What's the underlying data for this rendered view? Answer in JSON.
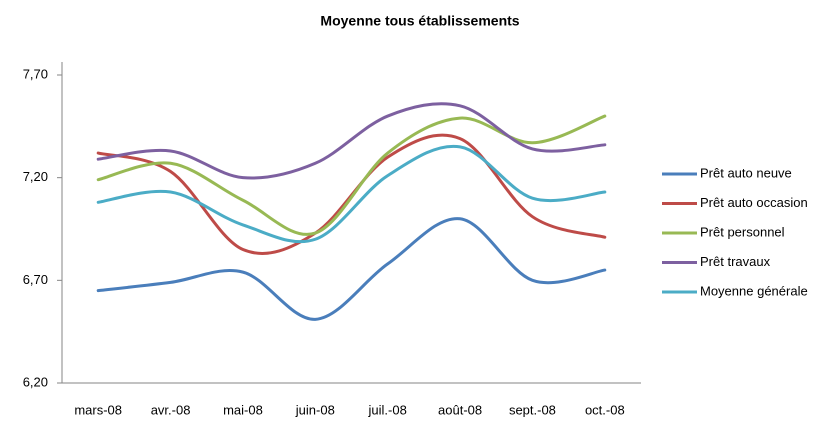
{
  "chart_data": {
    "type": "line",
    "title": "Moyenne tous établissements",
    "categories": [
      "mars-08",
      "avr.-08",
      "mai-08",
      "juin-08",
      "juil.-08",
      "août-08",
      "sept.-08",
      "oct.-08"
    ],
    "series": [
      {
        "name": "Prêt auto neuve",
        "color": "#4a7ebb",
        "values": [
          6.65,
          6.69,
          6.74,
          6.51,
          6.78,
          7.0,
          6.7,
          6.75
        ]
      },
      {
        "name": "Prêt auto occasion",
        "color": "#be4b48",
        "values": [
          7.32,
          7.23,
          6.85,
          6.93,
          7.3,
          7.39,
          7.01,
          6.91
        ]
      },
      {
        "name": "Prêt personnel",
        "color": "#98b954",
        "values": [
          7.19,
          7.27,
          7.09,
          6.93,
          7.32,
          7.49,
          7.37,
          7.5
        ]
      },
      {
        "name": "Prêt travaux",
        "color": "#7d60a0",
        "values": [
          7.29,
          7.33,
          7.2,
          7.27,
          7.5,
          7.55,
          7.34,
          7.36
        ]
      },
      {
        "name": "Moyenne générale",
        "color": "#4bacc6",
        "values": [
          7.08,
          7.13,
          6.97,
          6.9,
          7.21,
          7.35,
          7.1,
          7.13
        ]
      }
    ],
    "ylim": [
      6.2,
      7.7
    ],
    "yticks": [
      {
        "value": 6.2,
        "label": "6,20"
      },
      {
        "value": 6.7,
        "label": "6,70"
      },
      {
        "value": 7.2,
        "label": "7,20"
      },
      {
        "value": 7.7,
        "label": "7,70"
      }
    ],
    "grid": false,
    "legend": "right",
    "smooth": true
  }
}
